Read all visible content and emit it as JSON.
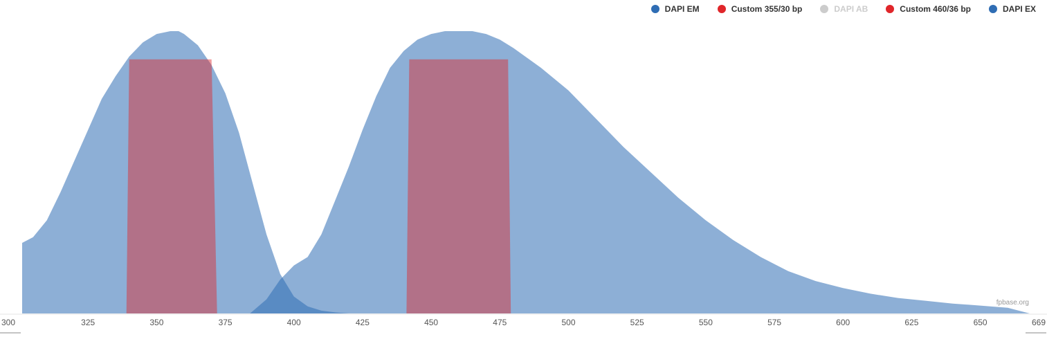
{
  "chart_data": {
    "type": "area",
    "title": "",
    "xlabel": "",
    "ylabel": "",
    "xlim": [
      300,
      669
    ],
    "ylim": [
      0,
      1
    ],
    "grid": false,
    "legend_position": "top-right",
    "x_ticks": [
      325,
      350,
      375,
      400,
      425,
      450,
      475,
      500,
      525,
      550,
      575,
      600,
      625,
      650
    ],
    "x_end_labels": [
      "300",
      "669"
    ],
    "credit": "fpbase.org",
    "legend": [
      {
        "name": "DAPI EM",
        "color": "#2f6db4",
        "visible": true
      },
      {
        "name": "Custom 355/30 bp",
        "color": "#e0262a",
        "visible": true
      },
      {
        "name": "DAPI AB",
        "color": "#cccccc",
        "visible": false
      },
      {
        "name": "Custom 460/36 bp",
        "color": "#e0262a",
        "visible": true
      },
      {
        "name": "DAPI EX",
        "color": "#2f6db4",
        "visible": true
      }
    ],
    "series": [
      {
        "name": "DAPI EX",
        "color": "#2f6db4",
        "fill_opacity": 0.55,
        "x": [
          301,
          305,
          310,
          315,
          320,
          325,
          330,
          335,
          340,
          345,
          350,
          355,
          358,
          360,
          365,
          370,
          375,
          380,
          385,
          390,
          395,
          400,
          405,
          410,
          415,
          420
        ],
        "y": [
          0.25,
          0.27,
          0.33,
          0.43,
          0.54,
          0.65,
          0.76,
          0.84,
          0.91,
          0.96,
          0.99,
          1.0,
          1.0,
          0.99,
          0.95,
          0.88,
          0.78,
          0.64,
          0.46,
          0.28,
          0.14,
          0.06,
          0.025,
          0.01,
          0.004,
          0.0
        ]
      },
      {
        "name": "DAPI EM",
        "color": "#2f6db4",
        "fill_opacity": 0.55,
        "x": [
          384,
          390,
          395,
          400,
          405,
          410,
          415,
          420,
          425,
          430,
          435,
          440,
          445,
          450,
          455,
          460,
          463,
          465,
          470,
          475,
          480,
          490,
          500,
          510,
          520,
          530,
          540,
          550,
          560,
          570,
          580,
          590,
          600,
          610,
          620,
          630,
          640,
          650,
          660,
          668
        ],
        "y": [
          0.0,
          0.05,
          0.12,
          0.17,
          0.2,
          0.28,
          0.4,
          0.52,
          0.65,
          0.77,
          0.87,
          0.93,
          0.97,
          0.99,
          1.0,
          1.0,
          1.0,
          1.0,
          0.99,
          0.97,
          0.94,
          0.87,
          0.79,
          0.69,
          0.59,
          0.5,
          0.41,
          0.33,
          0.26,
          0.2,
          0.15,
          0.115,
          0.09,
          0.07,
          0.055,
          0.045,
          0.035,
          0.028,
          0.02,
          0.0
        ]
      },
      {
        "name": "Custom 355/30 bp",
        "color": "#e0262a",
        "fill_opacity": 0.45,
        "x": [
          339,
          340,
          370,
          372
        ],
        "y": [
          0.0,
          0.9,
          0.9,
          0.0
        ]
      },
      {
        "name": "Custom 460/36 bp",
        "color": "#e0262a",
        "fill_opacity": 0.45,
        "x": [
          441,
          442,
          478,
          479
        ],
        "y": [
          0.0,
          0.9,
          0.9,
          0.0
        ]
      }
    ]
  }
}
